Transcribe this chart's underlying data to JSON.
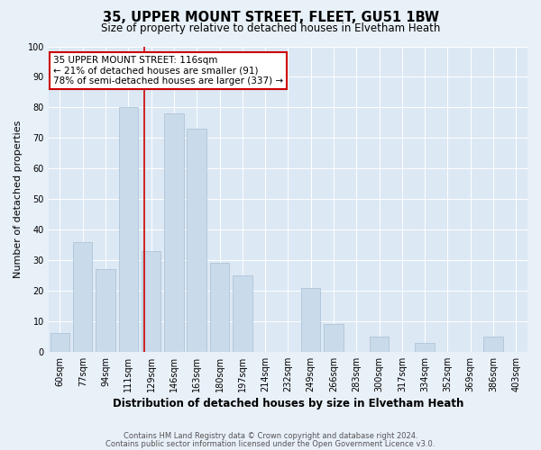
{
  "title1": "35, UPPER MOUNT STREET, FLEET, GU51 1BW",
  "title2": "Size of property relative to detached houses in Elvetham Heath",
  "xlabel": "Distribution of detached houses by size in Elvetham Heath",
  "ylabel": "Number of detached properties",
  "categories": [
    "60sqm",
    "77sqm",
    "94sqm",
    "111sqm",
    "129sqm",
    "146sqm",
    "163sqm",
    "180sqm",
    "197sqm",
    "214sqm",
    "232sqm",
    "249sqm",
    "266sqm",
    "283sqm",
    "300sqm",
    "317sqm",
    "334sqm",
    "352sqm",
    "369sqm",
    "386sqm",
    "403sqm"
  ],
  "values": [
    6,
    36,
    27,
    80,
    33,
    78,
    73,
    29,
    25,
    0,
    0,
    21,
    9,
    0,
    5,
    0,
    3,
    0,
    0,
    5,
    0
  ],
  "bar_color": "#c9daea",
  "bar_edge_color": "#a8c0d4",
  "red_line_x": 3.7,
  "annotation_text": "35 UPPER MOUNT STREET: 116sqm\n← 21% of detached houses are smaller (91)\n78% of semi-detached houses are larger (337) →",
  "annotation_box_color": "#ffffff",
  "annotation_box_edge": "#cc0000",
  "footer1": "Contains HM Land Registry data © Crown copyright and database right 2024.",
  "footer2": "Contains public sector information licensed under the Open Government Licence v3.0.",
  "ylim": [
    0,
    100
  ],
  "yticks": [
    0,
    10,
    20,
    30,
    40,
    50,
    60,
    70,
    80,
    90,
    100
  ],
  "bg_color": "#e8f0f8",
  "plot_bg_color": "#dce8f4",
  "grid_color": "#ffffff",
  "title1_fontsize": 10.5,
  "title2_fontsize": 8.5,
  "ylabel_fontsize": 8,
  "xlabel_fontsize": 8.5,
  "tick_fontsize": 7,
  "annotation_fontsize": 7.5,
  "footer_fontsize": 6
}
